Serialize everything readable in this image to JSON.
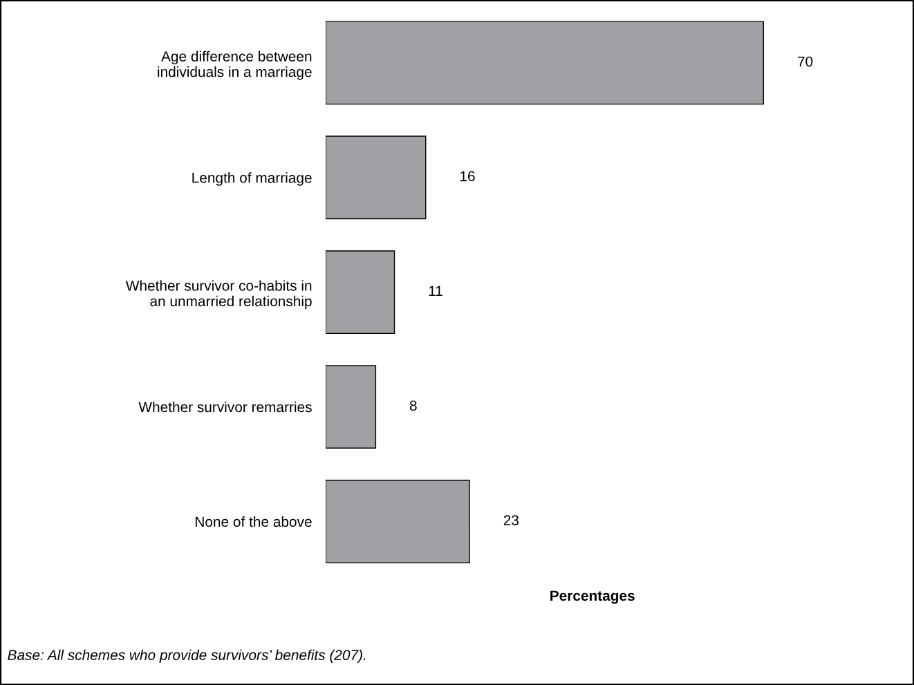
{
  "chart_data": {
    "type": "bar",
    "orientation": "horizontal",
    "categories": [
      "Age difference between\nindividuals in a marriage",
      "Length of marriage",
      "Whether survivor co-habits in\nan unmarried relationship",
      "Whether survivor remarries",
      "None of the above"
    ],
    "values": [
      70,
      16,
      11,
      8,
      23
    ],
    "color": "#a0a1a4",
    "data_labels": true,
    "xlabel": "Percentages",
    "tick_labels": "y",
    "grid": false,
    "legend": false,
    "annotations": [
      "Base: All schemes who provide survivors’ benefits (207)."
    ]
  }
}
